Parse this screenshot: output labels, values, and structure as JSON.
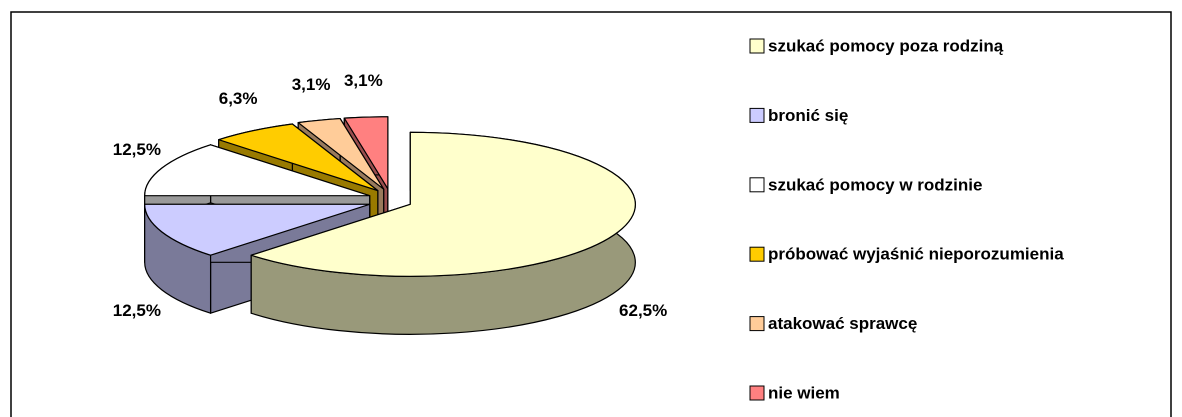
{
  "chart_data": {
    "type": "pie3d",
    "categories": [
      "szukać pomocy poza rodziną",
      "bronić się",
      "szukać pomocy w rodzinie",
      "próbować wyjaśnić nieporozumienia",
      "atakować sprawcę",
      "nie wiem"
    ],
    "values": [
      62.5,
      12.5,
      12.5,
      6.3,
      3.1,
      3.1
    ],
    "value_labels": [
      "62,5%",
      "12,5%",
      "12,5%",
      "6,3%",
      "3,1%",
      "3,1%"
    ],
    "colors": [
      "#ffffcc",
      "#ccccff",
      "#ffffff",
      "#ffcc00",
      "#ffcc99",
      "#ff8080"
    ],
    "legend": "right"
  }
}
